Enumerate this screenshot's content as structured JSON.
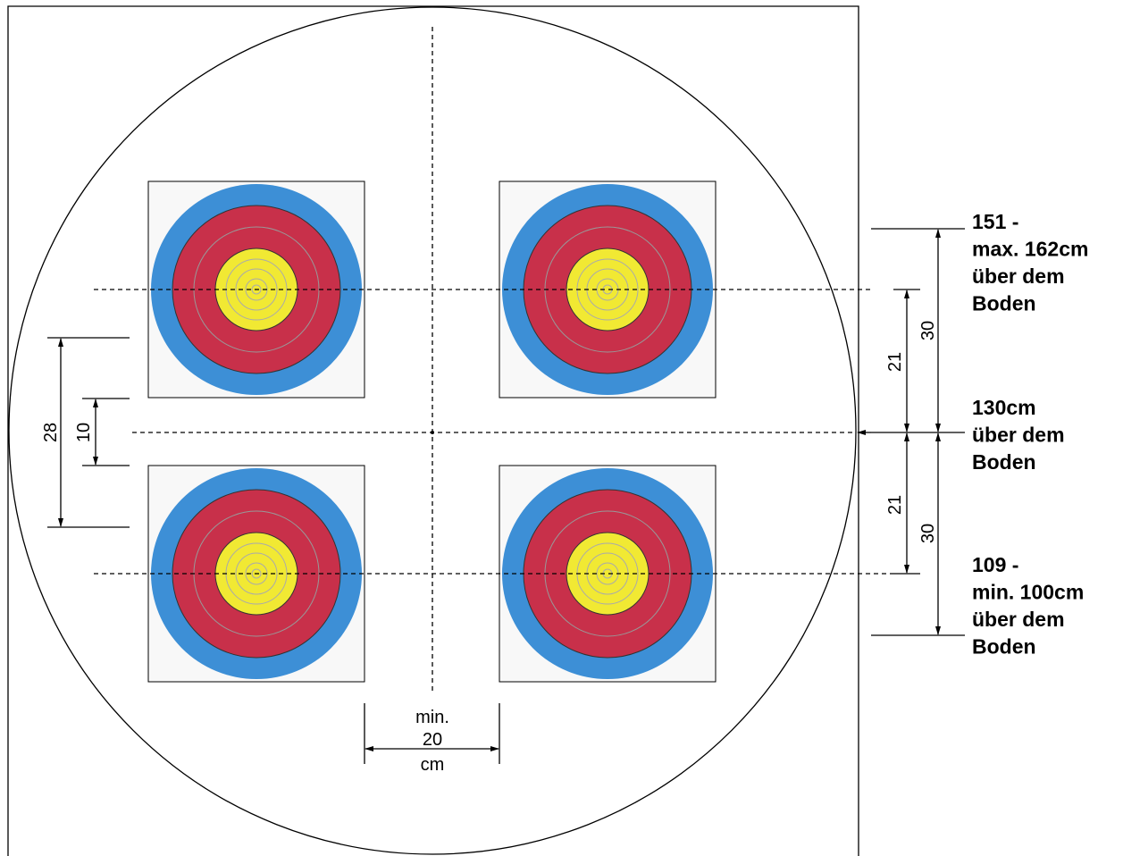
{
  "labels": {
    "top_height": [
      "151 -",
      "max. 162cm",
      "über dem",
      "Boden"
    ],
    "center_height": [
      "130cm",
      "über dem",
      "Boden"
    ],
    "bottom_height": [
      "109 -",
      "min. 100cm",
      "über dem",
      "Boden"
    ]
  },
  "dimensions": {
    "left_outer": 28,
    "left_inner": 10,
    "right_upper_inner": 21,
    "right_upper_outer": 30,
    "right_lower_inner": 21,
    "right_lower_outer": 30,
    "gap": {
      "min": "min.",
      "value": 20,
      "unit": "cm"
    }
  }
}
